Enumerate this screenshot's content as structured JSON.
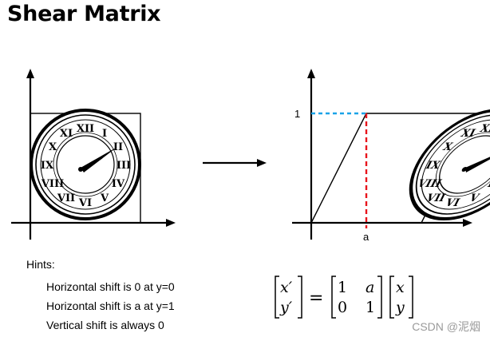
{
  "title": "Shear Matrix",
  "after_labels": {
    "y_tick": "1",
    "x_tick": "a"
  },
  "hints": {
    "heading": "Hints:",
    "items": [
      "Horizontal shift is 0 at y=0",
      "Horizontal shift is a at y=1",
      "Vertical shift is always 0"
    ]
  },
  "equation": {
    "lhs": [
      "x′",
      "y′"
    ],
    "equals": "=",
    "matrix": [
      [
        "1",
        "a"
      ],
      [
        "0",
        "1"
      ]
    ],
    "rhs": [
      "x",
      "y"
    ]
  },
  "watermark": "CSDN @泥烟",
  "colors": {
    "y_guide": "#1aa3e8",
    "x_guide": "#e8141c",
    "ink": "#000000"
  }
}
